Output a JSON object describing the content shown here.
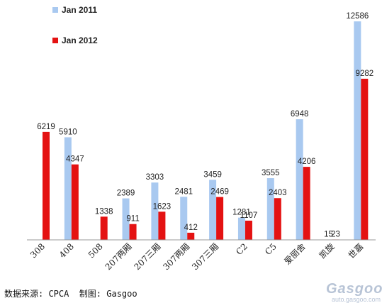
{
  "chart_data": {
    "type": "bar",
    "title": "",
    "xlabel": "",
    "ylabel": "",
    "ylim": [
      0,
      13000
    ],
    "grid": false,
    "legend": "top-left",
    "categories": [
      "308",
      "408",
      "508",
      "207两厢",
      "207三厢",
      "307两厢",
      "307三厢",
      "C2",
      "C5",
      "爱丽舍",
      "凯旋",
      "世嘉"
    ],
    "series": [
      {
        "name": "Jan 2011",
        "color": "#a9c9f0",
        "values": [
          null,
          5910,
          null,
          2389,
          3303,
          2481,
          3459,
          1281,
          3555,
          6948,
          15,
          12586
        ],
        "labels": [
          "",
          "5910",
          "",
          "2389",
          "3303",
          "2481",
          "3459",
          "1281",
          "3555",
          "6948",
          "15",
          "12586"
        ]
      },
      {
        "name": "Jan 2012",
        "color": "#e41212",
        "values": [
          6219,
          4347,
          1338,
          911,
          1623,
          412,
          2469,
          1107,
          2403,
          4206,
          23,
          9282
        ],
        "labels": [
          "6219",
          "4347",
          "1338",
          "911",
          "1623",
          "412",
          "2469",
          "1107",
          "2403",
          "4206",
          "23",
          "9282"
        ]
      }
    ]
  },
  "footer": {
    "source": "数据来源: CPCA  制图: Gasgoo"
  },
  "watermark": {
    "brand": "Gasgoo",
    "site": "auto.gasgoo.com"
  }
}
